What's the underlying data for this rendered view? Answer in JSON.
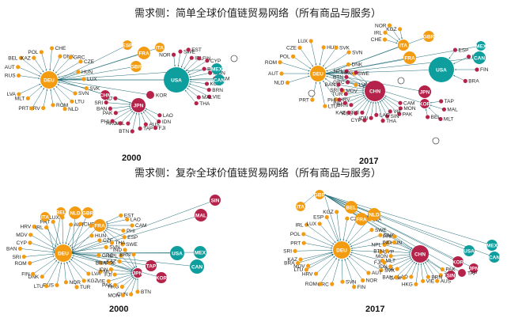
{
  "titles": {
    "simple": "需求侧：简单全球价值链贸易网络（所有商品与服务）",
    "complex": "需求侧：复杂全球价值链贸易网络（所有商品与服务）"
  },
  "years": {
    "p1": "2000",
    "p2": "2017",
    "p3": "2000",
    "p4": "2017"
  },
  "colors": {
    "orange": "#f39c12",
    "teal": "#0f9e9e",
    "crimson": "#b5234a",
    "white": "#ffffff"
  },
  "networks": [
    {
      "hubs": [
        {
          "id": "DEU",
          "c": "orange"
        },
        {
          "id": "USA",
          "c": "teal"
        },
        {
          "id": "JPN",
          "c": "crimson"
        },
        {
          "id": "CHN",
          "c": "crimson"
        },
        {
          "id": "FRA",
          "c": "orange"
        },
        {
          "id": "GBR",
          "c": "orange"
        },
        {
          "id": "ITA",
          "c": "orange"
        },
        {
          "id": "ESP",
          "c": "orange"
        },
        {
          "id": "CAN",
          "c": "teal"
        },
        {
          "id": "MEX",
          "c": "teal"
        },
        {
          "id": "KOR",
          "c": "crimson"
        }
      ],
      "leaves": [
        "RUS",
        "AUT",
        "BEL",
        "KAZ",
        "POL",
        "CHE",
        "DNK",
        "GRC",
        "CZE",
        "HUN",
        "LUX",
        "SVK",
        "SVN",
        "LTU",
        "NLD",
        "ROM",
        "HRV",
        "PRT",
        "MLT",
        "LVA",
        "NOR",
        "SWE",
        "EST",
        "IRL",
        "FIN",
        "CYP",
        "BRA",
        "MON",
        "CAM",
        "KGZ",
        "BRN",
        "VIE",
        "MAL",
        "THA",
        "LAO",
        "IDN",
        "FJI",
        "AUS",
        "TAP",
        "BTN",
        "NPL",
        "HKG",
        "PHI",
        "PAK",
        "BAN",
        "SRI",
        "IND"
      ]
    },
    {
      "hubs": [
        {
          "id": "DEU",
          "c": "orange"
        },
        {
          "id": "USA",
          "c": "teal"
        },
        {
          "id": "CHN",
          "c": "crimson"
        },
        {
          "id": "JPN",
          "c": "crimson"
        },
        {
          "id": "KOR",
          "c": "crimson"
        },
        {
          "id": "CAN",
          "c": "teal"
        },
        {
          "id": "MEX",
          "c": "teal"
        },
        {
          "id": "FRA",
          "c": "orange"
        },
        {
          "id": "ITA",
          "c": "orange"
        },
        {
          "id": "GBR",
          "c": "orange"
        }
      ],
      "leaves": [
        "NLD",
        "AUT",
        "ROM",
        "POL",
        "CZE",
        "LUX",
        "HUN",
        "SVK",
        "SVN",
        "DNK",
        "SWE",
        "LVA",
        "MDV",
        "HRV",
        "LTU",
        "PRT",
        "ESP",
        "EST",
        "FIN",
        "BRA",
        "CAM",
        "MON",
        "PAK",
        "VIE",
        "SIN",
        "THA",
        "LAO",
        "IDN",
        "CYP",
        "FJI",
        "RUS",
        "KAZ",
        "BRN",
        "IND",
        "PHI",
        "TUR",
        "SRI",
        "BAN",
        "GRC",
        "BTN",
        "NPL",
        "HKG",
        "TAP",
        "MAL",
        "MLT",
        "BEL",
        "CHE",
        "IRL",
        "NOR",
        "KGZ"
      ]
    },
    {
      "hubs": [
        {
          "id": "DEU",
          "c": "orange"
        },
        {
          "id": "ITA",
          "c": "orange"
        },
        {
          "id": "BEL",
          "c": "orange"
        },
        {
          "id": "NLD",
          "c": "orange"
        },
        {
          "id": "GBR",
          "c": "orange"
        },
        {
          "id": "FRA",
          "c": "orange"
        },
        {
          "id": "JPN",
          "c": "crimson"
        },
        {
          "id": "KOR",
          "c": "crimson"
        },
        {
          "id": "TAP",
          "c": "crimson"
        },
        {
          "id": "MAL",
          "c": "crimson"
        },
        {
          "id": "SIN",
          "c": "crimson"
        },
        {
          "id": "USA",
          "c": "teal"
        },
        {
          "id": "MEX",
          "c": "teal"
        },
        {
          "id": "CAN",
          "c": "teal"
        }
      ],
      "leaves": [
        "ROM",
        "SRI",
        "BAN",
        "CYP",
        "MDV",
        "HRV",
        "IRL",
        "PRT",
        "LUX",
        "AUT",
        "CHE",
        "POL",
        "HUN",
        "CZE",
        "SVN",
        "GRC",
        "SVK",
        "MLT",
        "LVA",
        "KGZ",
        "TUR",
        "NOR",
        "RUS",
        "LTU",
        "DNK",
        "FIN",
        "EST",
        "LAO",
        "CAM",
        "PHI",
        "ESP",
        "SWE",
        "THA",
        "BTN",
        "CHN",
        "MON",
        "HKG",
        "PAK",
        "VIE",
        "FJI",
        "IDN",
        "BRA",
        "KAZ",
        "NPL",
        "IND",
        "BRN",
        "PAK"
      ]
    },
    {
      "hubs": [
        {
          "id": "GBR",
          "c": "orange"
        },
        {
          "id": "ITA",
          "c": "orange"
        },
        {
          "id": "BEL",
          "c": "orange"
        },
        {
          "id": "FRA",
          "c": "orange"
        },
        {
          "id": "NLD",
          "c": "orange"
        },
        {
          "id": "DEU",
          "c": "orange"
        },
        {
          "id": "CHN",
          "c": "crimson"
        },
        {
          "id": "KOR",
          "c": "crimson"
        },
        {
          "id": "SIN",
          "c": "crimson"
        },
        {
          "id": "JPN",
          "c": "crimson"
        },
        {
          "id": "TAP",
          "c": "crimson"
        },
        {
          "id": "USA",
          "c": "teal"
        },
        {
          "id": "MEX",
          "c": "teal"
        },
        {
          "id": "CAN",
          "c": "teal"
        }
      ],
      "leaves": [
        "MDV",
        "KAZ",
        "SRI",
        "PRT",
        "POL",
        "IRL",
        "LUX",
        "ESP",
        "KGZ",
        "CZE",
        "CHE",
        "LVA",
        "SWE",
        "DNK",
        "HUN",
        "CYP",
        "MLT",
        "SVK",
        "AUT",
        "NOR",
        "FIN",
        "SVN",
        "GRC",
        "ROM",
        "HRV",
        "LTU",
        "BRA",
        "PAK",
        "TUR",
        "AUS",
        "BRN",
        "VIE",
        "HKG",
        "LAO",
        "CAM",
        "BAN",
        "THA",
        "IDN",
        "FJI",
        "MON",
        "BTN",
        "NPL",
        "IND",
        "PHI",
        "RUS"
      ]
    }
  ]
}
